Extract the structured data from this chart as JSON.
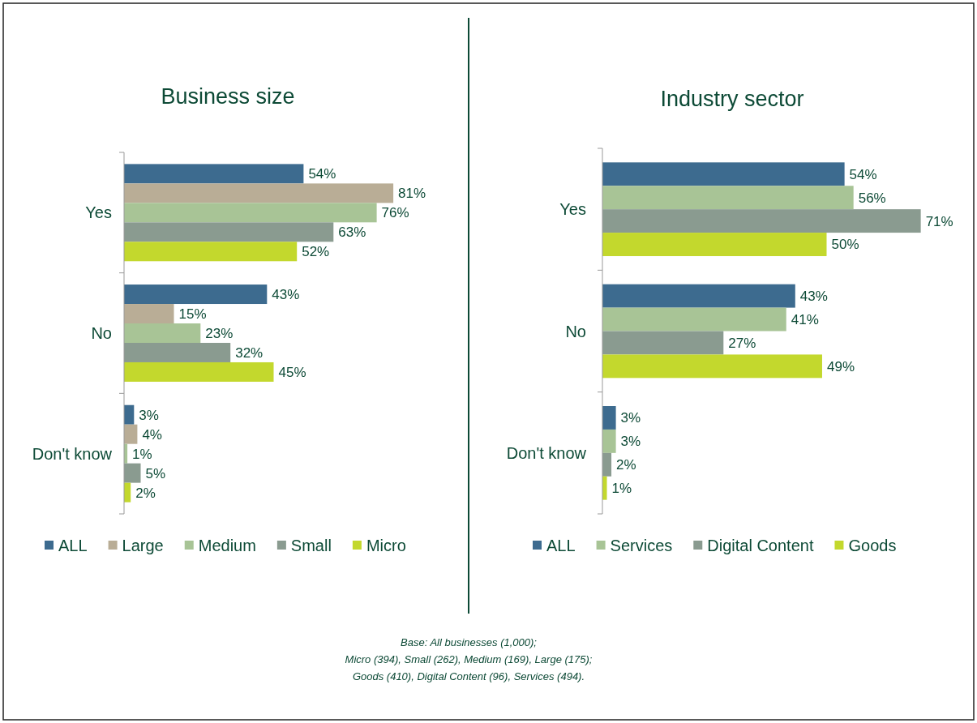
{
  "chart_data": [
    {
      "type": "bar",
      "orientation": "horizontal",
      "title": "Business size",
      "categories": [
        "Yes",
        "No",
        "Don't know"
      ],
      "legend": "bottom",
      "series": [
        {
          "name": "ALL",
          "color": "#3d6b8f",
          "values": [
            54,
            43,
            3
          ],
          "value_labels": [
            "54%",
            "43%",
            "3%"
          ]
        },
        {
          "name": "Large",
          "color": "#b9ad96",
          "values": [
            81,
            15,
            4
          ],
          "value_labels": [
            "81%",
            "15%",
            "4%"
          ]
        },
        {
          "name": "Medium",
          "color": "#a8c496",
          "values": [
            76,
            23,
            1
          ],
          "value_labels": [
            "76%",
            "23%",
            "1%"
          ]
        },
        {
          "name": "Small",
          "color": "#8a9b90",
          "values": [
            63,
            32,
            5
          ],
          "value_labels": [
            "63%",
            "32%",
            "5%"
          ]
        },
        {
          "name": "Micro",
          "color": "#c3d82d",
          "values": [
            52,
            45,
            2
          ],
          "value_labels": [
            "52%",
            "45%",
            "2%"
          ]
        }
      ],
      "annotations": [
        "Base: All businesses (1,000);",
        "Micro (394), Small (262), Medium (169), Large (175);",
        "Goods (410), Digital Content (96), Services (494)."
      ]
    },
    {
      "type": "bar",
      "orientation": "horizontal",
      "title": "Industry sector",
      "categories": [
        "Yes",
        "No",
        "Don't know"
      ],
      "legend": "bottom",
      "series": [
        {
          "name": "ALL",
          "color": "#3d6b8f",
          "values": [
            54,
            43,
            3
          ],
          "value_labels": [
            "54%",
            "43%",
            "3%"
          ]
        },
        {
          "name": "Services",
          "color": "#a8c496",
          "values": [
            56,
            41,
            3
          ],
          "value_labels": [
            "56%",
            "41%",
            "3%"
          ]
        },
        {
          "name": "Digital Content",
          "color": "#8a9b90",
          "values": [
            71,
            27,
            2
          ],
          "value_labels": [
            "71%",
            "27%",
            "2%"
          ]
        },
        {
          "name": "Goods",
          "color": "#c3d82d",
          "values": [
            50,
            49,
            1
          ],
          "value_labels": [
            "50%",
            "49%",
            "1%"
          ]
        }
      ]
    }
  ]
}
